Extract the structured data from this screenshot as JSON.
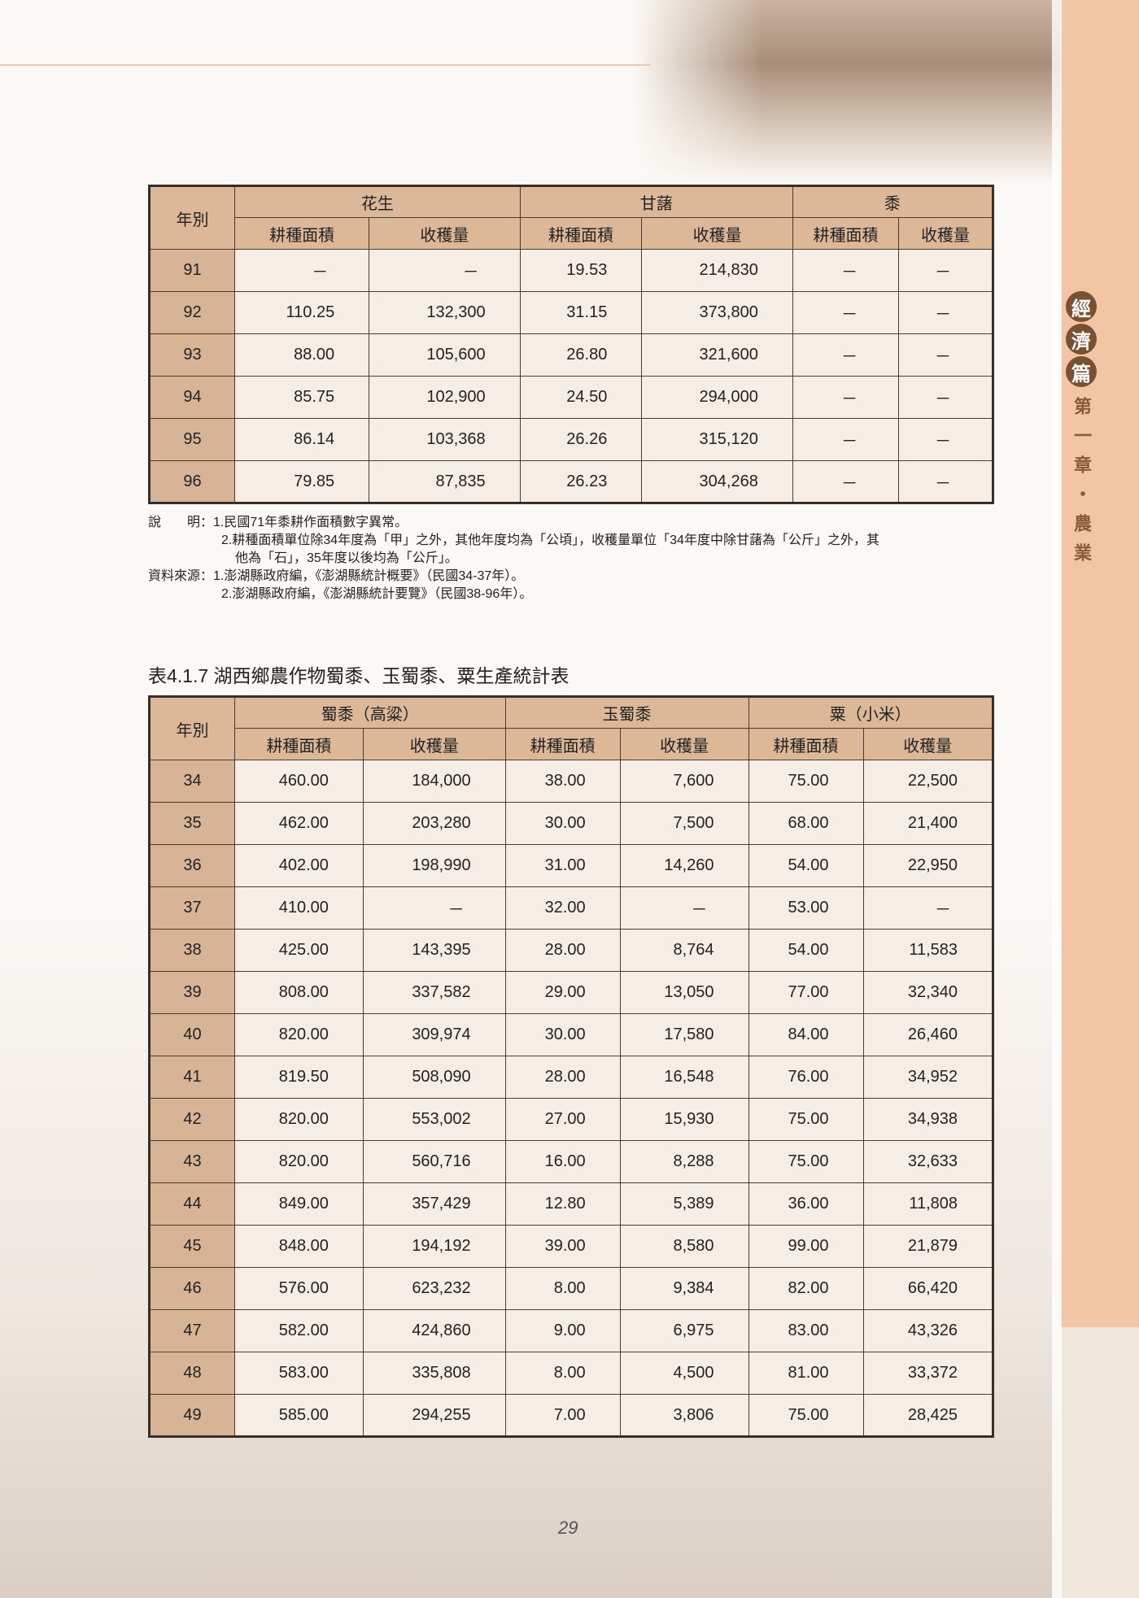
{
  "sidebar": {
    "section": [
      "經",
      "濟",
      "篇"
    ],
    "chapter": "第一章・農業"
  },
  "table1": {
    "year_header": "年別",
    "groups": [
      "花生",
      "甘藷",
      "黍"
    ],
    "subheaders": [
      "耕種面積",
      "收穫量",
      "耕種面積",
      "收穫量",
      "耕種面積",
      "收穫量"
    ],
    "rows": [
      [
        "91",
        "－",
        "－",
        "19.53",
        "214,830",
        "－",
        "－"
      ],
      [
        "92",
        "110.25",
        "132,300",
        "31.15",
        "373,800",
        "－",
        "－"
      ],
      [
        "93",
        "88.00",
        "105,600",
        "26.80",
        "321,600",
        "－",
        "－"
      ],
      [
        "94",
        "85.75",
        "102,900",
        "24.50",
        "294,000",
        "－",
        "－"
      ],
      [
        "95",
        "86.14",
        "103,368",
        "26.26",
        "315,120",
        "－",
        "－"
      ],
      [
        "96",
        "79.85",
        "87,835",
        "26.23",
        "304,268",
        "－",
        "－"
      ]
    ]
  },
  "notes": {
    "lines": [
      "說　　明：1.民國71年黍耕作面積數字異常。",
      "2.耕種面積單位除34年度為「甲」之外，其他年度均為「公頃」，收穫量單位「34年度中除甘藷為「公斤」之外，其",
      "他為「石」，35年度以後均為「公斤」。",
      "資料來源：1.澎湖縣政府編，《澎湖縣統計概要》（民國34-37年）。",
      "2.澎湖縣政府編，《澎湖縣統計要覽》（民國38-96年）。"
    ]
  },
  "table2": {
    "title": "表4.1.7 湖西鄉農作物蜀黍、玉蜀黍、粟生產統計表",
    "year_header": "年別",
    "groups": [
      "蜀黍（高粱）",
      "玉蜀黍",
      "粟（小米）"
    ],
    "subheaders": [
      "耕種面積",
      "收穫量",
      "耕種面積",
      "收穫量",
      "耕種面積",
      "收穫量"
    ],
    "rows": [
      [
        "34",
        "460.00",
        "184,000",
        "38.00",
        "7,600",
        "75.00",
        "22,500"
      ],
      [
        "35",
        "462.00",
        "203,280",
        "30.00",
        "7,500",
        "68.00",
        "21,400"
      ],
      [
        "36",
        "402.00",
        "198,990",
        "31.00",
        "14,260",
        "54.00",
        "22,950"
      ],
      [
        "37",
        "410.00",
        "－",
        "32.00",
        "－",
        "53.00",
        "－"
      ],
      [
        "38",
        "425.00",
        "143,395",
        "28.00",
        "8,764",
        "54.00",
        "11,583"
      ],
      [
        "39",
        "808.00",
        "337,582",
        "29.00",
        "13,050",
        "77.00",
        "32,340"
      ],
      [
        "40",
        "820.00",
        "309,974",
        "30.00",
        "17,580",
        "84.00",
        "26,460"
      ],
      [
        "41",
        "819.50",
        "508,090",
        "28.00",
        "16,548",
        "76.00",
        "34,952"
      ],
      [
        "42",
        "820.00",
        "553,002",
        "27.00",
        "15,930",
        "75.00",
        "34,938"
      ],
      [
        "43",
        "820.00",
        "560,716",
        "16.00",
        "8,288",
        "75.00",
        "32,633"
      ],
      [
        "44",
        "849.00",
        "357,429",
        "12.80",
        "5,389",
        "36.00",
        "11,808"
      ],
      [
        "45",
        "848.00",
        "194,192",
        "39.00",
        "8,580",
        "99.00",
        "21,879"
      ],
      [
        "46",
        "576.00",
        "623,232",
        "8.00",
        "9,384",
        "82.00",
        "66,420"
      ],
      [
        "47",
        "582.00",
        "424,860",
        "9.00",
        "6,975",
        "83.00",
        "43,326"
      ],
      [
        "48",
        "583.00",
        "335,808",
        "8.00",
        "4,500",
        "81.00",
        "33,372"
      ],
      [
        "49",
        "585.00",
        "294,255",
        "7.00",
        "3,806",
        "75.00",
        "28,425"
      ]
    ]
  },
  "page_number": "29"
}
